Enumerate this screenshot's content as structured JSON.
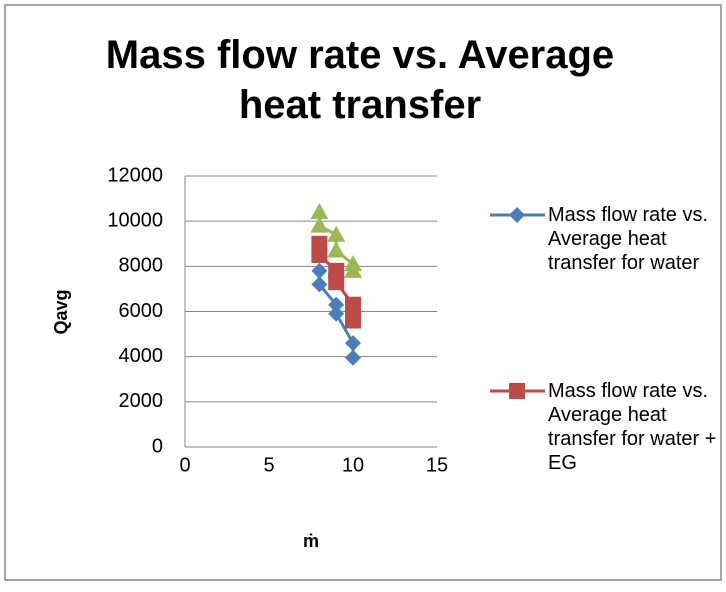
{
  "chart_data": {
    "type": "scatter",
    "title": "Mass flow rate vs. Average heat transfer",
    "x_label": "ṁ",
    "y_label": "Qavg",
    "xlim": [
      0,
      15
    ],
    "xticks": [
      0,
      5,
      10,
      15
    ],
    "ylim": [
      0,
      12000
    ],
    "yticks": [
      0,
      2000,
      4000,
      6000,
      8000,
      10000,
      12000
    ],
    "grid": true,
    "legend": "right",
    "series": [
      {
        "name": "Mass flow rate vs. Average heat transfer for water",
        "color": "#4a7ebb",
        "marker": "diamond",
        "x": [
          8,
          8,
          9,
          9,
          10,
          10
        ],
        "values": [
          7800,
          7200,
          6300,
          5900,
          4600,
          3950
        ]
      },
      {
        "name": "Mass flow rate vs. Average heat transfer for water + EG",
        "color": "#be4b48",
        "marker": "square",
        "x": [
          8,
          8,
          9,
          9,
          10,
          10
        ],
        "values": [
          9000,
          8500,
          7800,
          7300,
          6300,
          5600
        ]
      },
      {
        "color": "#98b954",
        "marker": "triangle",
        "x": [
          8,
          8,
          9,
          9,
          10,
          10
        ],
        "values": [
          10400,
          9800,
          9400,
          8700,
          8100,
          7800
        ]
      }
    ]
  }
}
